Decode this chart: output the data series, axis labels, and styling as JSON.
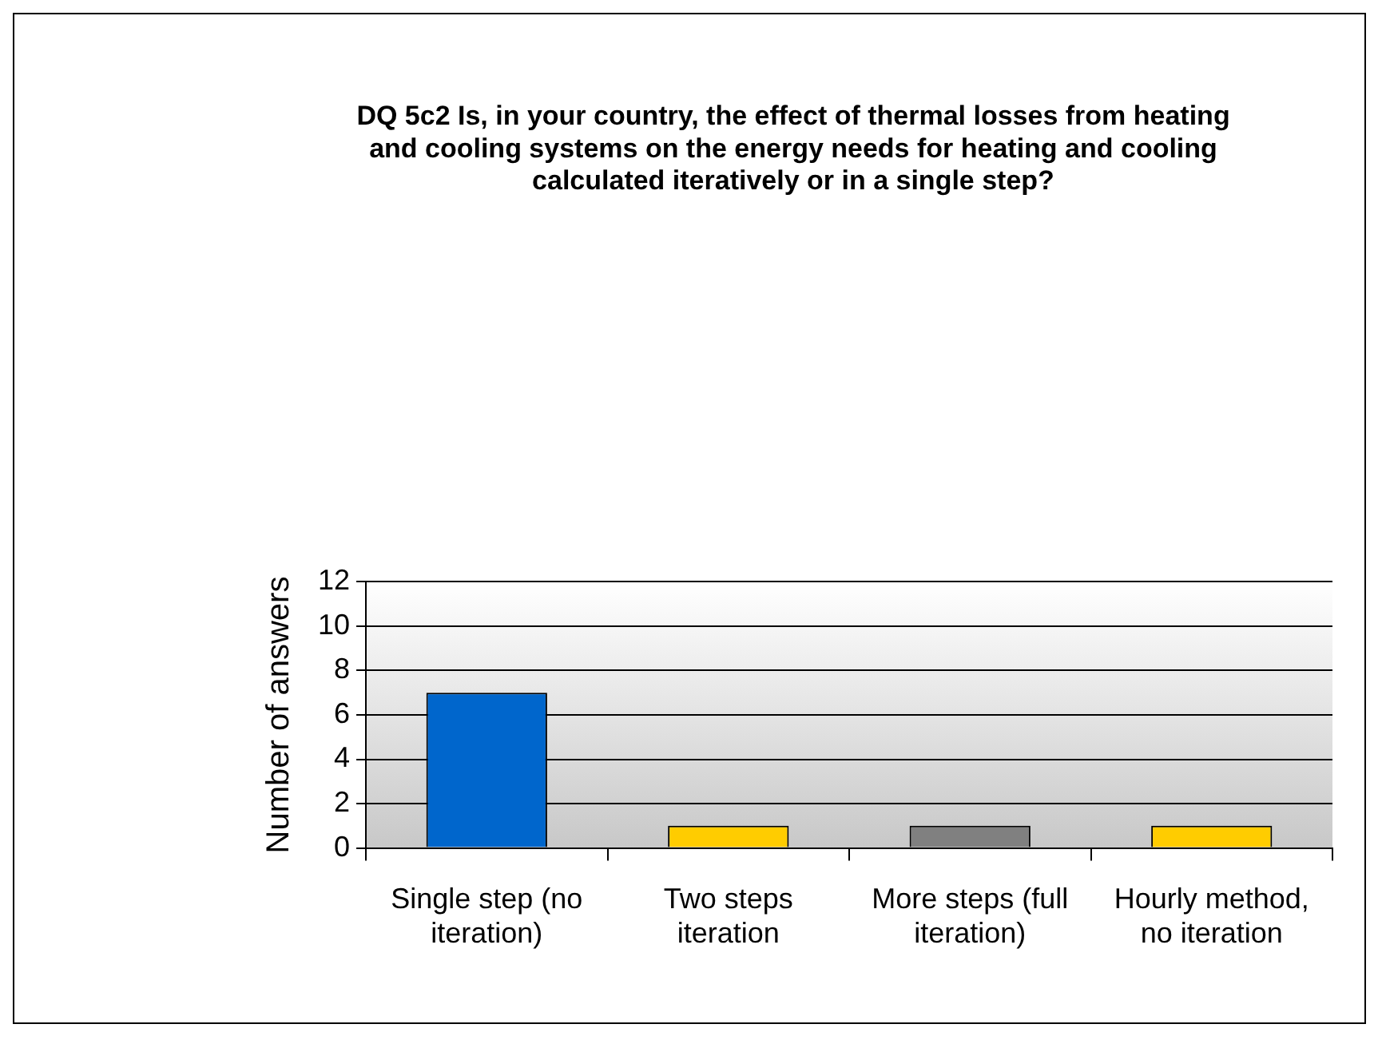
{
  "chart_data": {
    "type": "bar",
    "title": "DQ 5c2 Is, in your country, the effect of thermal losses from heating and cooling systems on the energy needs for heating and cooling calculated iteratively or in a single step?",
    "ylabel": "Number of answers",
    "categories": [
      "Single step (no iteration)",
      "Two steps iteration",
      "More steps (full iteration)",
      "Hourly method, no iteration"
    ],
    "values": [
      7,
      1,
      1,
      1
    ],
    "colors": [
      "#0066cc",
      "#ffcc00",
      "#808080",
      "#ffcc00"
    ],
    "ylim": [
      0,
      12
    ],
    "yticks": [
      0,
      2,
      4,
      6,
      8,
      10,
      12
    ],
    "grid": "y",
    "legend": false
  }
}
